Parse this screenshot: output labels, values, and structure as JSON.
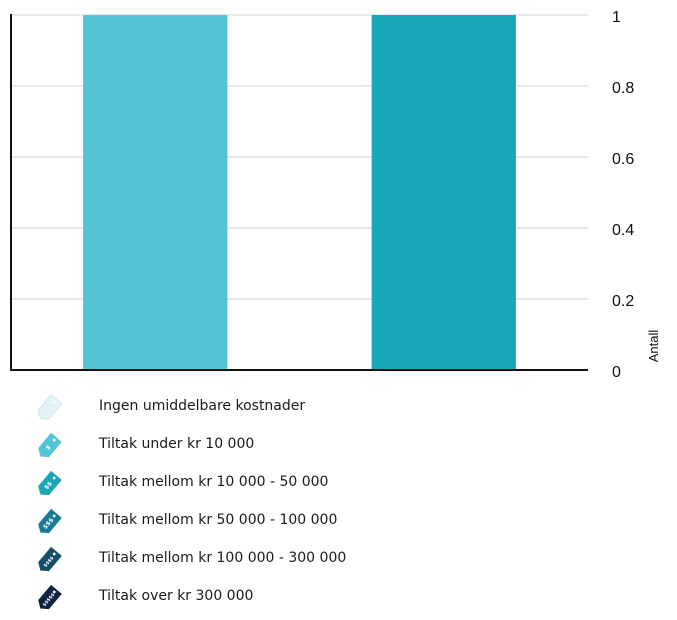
{
  "chart_data": {
    "type": "bar",
    "categories": [
      "",
      ""
    ],
    "series": [
      {
        "values": [
          1,
          1
        ]
      }
    ],
    "bar_colors": [
      "#52c4d6",
      "#19a7b7"
    ],
    "title": "",
    "xlabel": "",
    "ylabel": "Antall",
    "ylim": [
      0,
      1
    ],
    "yticks": [
      "0",
      "0.2",
      "0.4",
      "0.6",
      "0.8",
      "1"
    ],
    "y_axis_side": "right",
    "grid": true,
    "legend_position": "bottom"
  },
  "legend": {
    "items": [
      {
        "label": "Ingen umiddelbare kostnader",
        "color": "#e3f2f6",
        "symbol": "",
        "icon": "price-tag-icon"
      },
      {
        "label": "Tiltak under kr 10 000",
        "color": "#52c4d6",
        "symbol": "$",
        "icon": "price-tag-icon"
      },
      {
        "label": "Tiltak mellom kr 10 000 - 50 000",
        "color": "#19a7b7",
        "symbol": "$$",
        "icon": "price-tag-icon"
      },
      {
        "label": "Tiltak mellom kr 50 000 - 100 000",
        "color": "#177a99",
        "symbol": "$$$",
        "icon": "price-tag-icon"
      },
      {
        "label": "Tiltak mellom kr 100 000 - 300 000",
        "color": "#154f66",
        "symbol": "$$$$",
        "icon": "price-tag-icon"
      },
      {
        "label": "Tiltak over kr 300 000",
        "color": "#0f2240",
        "symbol": "$$$$$",
        "icon": "price-tag-icon"
      }
    ]
  }
}
